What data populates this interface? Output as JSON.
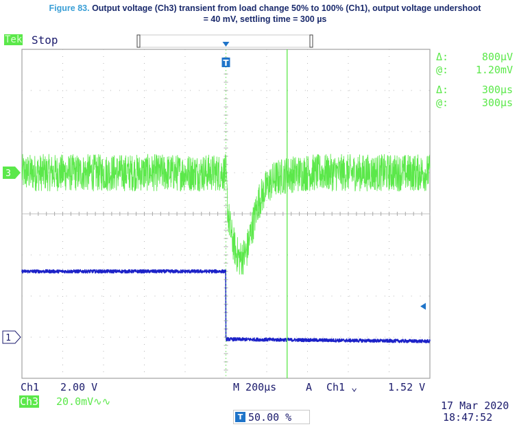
{
  "caption": {
    "figure": "Figure 83.",
    "text": "Output voltage (Ch3) transient from load change 50% to 100% (Ch1), output voltage undershoot",
    "text2": "= 40 mV, settling time = 300 µs"
  },
  "scope": {
    "brand": "Tek",
    "state": "Stop",
    "ch3_marker": "3",
    "ch1_marker": "1",
    "trigger_marker": "T"
  },
  "readouts": {
    "voltage": {
      "delta_symbol": "Δ:",
      "delta": "800µV",
      "at_symbol": "@:",
      "at": "1.20mV"
    },
    "time": {
      "delta_symbol": "Δ:",
      "delta": "300µs",
      "at_symbol": "@:",
      "at": "300µs"
    }
  },
  "status": {
    "ch1_name": "Ch1",
    "ch1_scale": "2.00 V",
    "ch3_name": "Ch3",
    "ch3_scale": "20.0mV∿∿",
    "timebase": "M 200µs",
    "trigger_mode": "A",
    "trigger_source": "Ch1 ⌄",
    "trigger_level": "1.52 V",
    "trigger_position": "50.00 %",
    "date": "17 Mar 2020",
    "time": "18:47:52"
  },
  "chart_data": {
    "type": "line",
    "title": "",
    "xlabel": "",
    "ylabel": "",
    "grid": true,
    "x_divisions": 10,
    "y_divisions": 8,
    "timebase_per_div": "200µs",
    "trigger_time_div": 5.0,
    "cursor_time_div": 6.5,
    "series": [
      {
        "name": "Ch3",
        "color": "#5be84a",
        "x_div": [
          0,
          1,
          2,
          3,
          4,
          5.0,
          5.05,
          5.15,
          5.25,
          5.35,
          5.5,
          5.65,
          5.8,
          6.0,
          6.2,
          6.5,
          7,
          8,
          9,
          10
        ],
        "y_div": [
          1.0,
          1.0,
          1.0,
          1.0,
          1.0,
          1.0,
          0.0,
          -0.6,
          -0.95,
          -1.1,
          -0.95,
          -0.3,
          0.3,
          0.65,
          0.85,
          0.95,
          1.0,
          1.0,
          1.0,
          1.0
        ],
        "noise_div": 0.45
      },
      {
        "name": "Ch1",
        "color": "#1c22c8",
        "x_div": [
          0,
          5.0,
          5.0,
          10
        ],
        "y_div": [
          -1.4,
          -1.4,
          -3.05,
          -3.1
        ],
        "noise_div": 0.04
      }
    ]
  }
}
